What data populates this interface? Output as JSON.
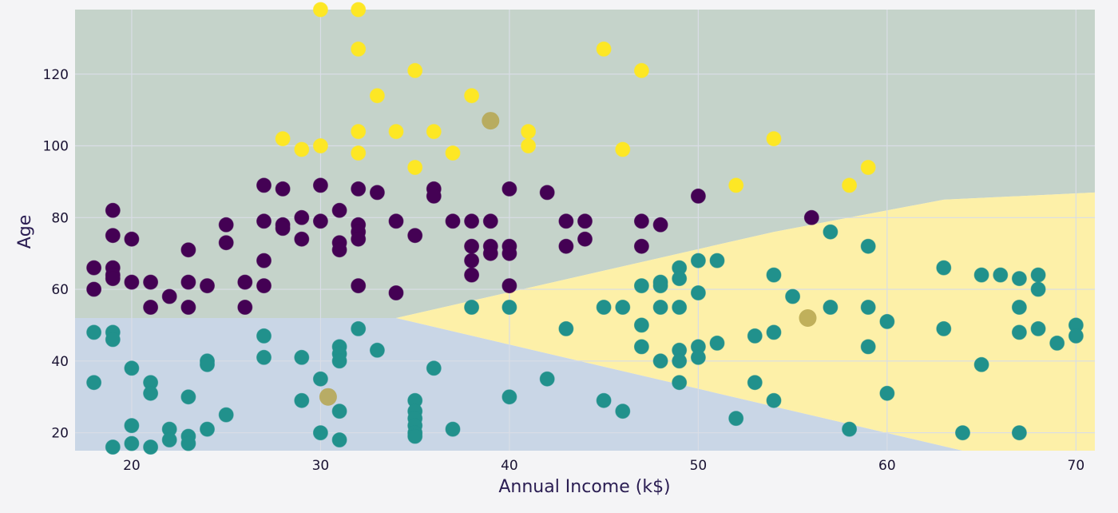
{
  "chart_data": {
    "type": "scatter",
    "title": "",
    "xlabel": "Annual Income (k$)",
    "ylabel": "Age",
    "xlim": [
      17,
      71
    ],
    "ylim": [
      15,
      138
    ],
    "x_ticks": [
      20,
      30,
      40,
      50,
      60,
      70
    ],
    "y_ticks": [
      20,
      40,
      60,
      80,
      100,
      120
    ],
    "grid": true,
    "colors": {
      "region_teal": "#c5d3ca",
      "region_blue": "#c9d6e6",
      "region_yellow": "#fdf0a8",
      "purple": "#440154",
      "teal": "#21918c",
      "yellow": "#fde725",
      "centroid": "#b5a44e"
    },
    "decision_regions": [
      {
        "name": "region-purple-cluster",
        "color_key": "region_teal",
        "points": [
          [
            17,
            138
          ],
          [
            71,
            138
          ],
          [
            71,
            87
          ],
          [
            63,
            85
          ],
          [
            54,
            76
          ],
          [
            34,
            52
          ],
          [
            17,
            52
          ]
        ]
      },
      {
        "name": "region-teal-cluster",
        "color_key": "region_blue",
        "points": [
          [
            17,
            52
          ],
          [
            34,
            52
          ],
          [
            64,
            15
          ],
          [
            17,
            15
          ]
        ]
      },
      {
        "name": "region-yellow-cluster",
        "color_key": "region_yellow",
        "points": [
          [
            34,
            52
          ],
          [
            54,
            76
          ],
          [
            63,
            85
          ],
          [
            71,
            87
          ],
          [
            71,
            15
          ],
          [
            64,
            15
          ]
        ]
      }
    ],
    "series": [
      {
        "color_key": "yellow",
        "points": [
          [
            30,
            138
          ],
          [
            32,
            138
          ],
          [
            32,
            127
          ],
          [
            45,
            127
          ],
          [
            35,
            121
          ],
          [
            47,
            121
          ],
          [
            33,
            114
          ],
          [
            38,
            114
          ],
          [
            32,
            104
          ],
          [
            34,
            104
          ],
          [
            36,
            104
          ],
          [
            41,
            104
          ],
          [
            28,
            102
          ],
          [
            54,
            102
          ],
          [
            29,
            99
          ],
          [
            30,
            100
          ],
          [
            41,
            100
          ],
          [
            46,
            99
          ],
          [
            32,
            98
          ],
          [
            37,
            98
          ],
          [
            35,
            94
          ],
          [
            59,
            94
          ],
          [
            52,
            89
          ],
          [
            58,
            89
          ]
        ]
      },
      {
        "color_key": "purple",
        "points": [
          [
            19,
            82
          ],
          [
            19,
            75
          ],
          [
            20,
            74
          ],
          [
            18,
            66
          ],
          [
            19,
            66
          ],
          [
            19,
            64
          ],
          [
            19,
            63
          ],
          [
            18,
            60
          ],
          [
            20,
            62
          ],
          [
            21,
            62
          ],
          [
            21,
            55
          ],
          [
            22,
            58
          ],
          [
            23,
            71
          ],
          [
            23,
            62
          ],
          [
            23,
            55
          ],
          [
            24,
            61
          ],
          [
            25,
            78
          ],
          [
            25,
            73
          ],
          [
            26,
            62
          ],
          [
            26,
            55
          ],
          [
            27,
            89
          ],
          [
            27,
            79
          ],
          [
            27,
            68
          ],
          [
            27,
            61
          ],
          [
            28,
            88
          ],
          [
            28,
            78
          ],
          [
            28,
            77
          ],
          [
            29,
            80
          ],
          [
            29,
            74
          ],
          [
            30,
            89
          ],
          [
            30,
            79
          ],
          [
            31,
            82
          ],
          [
            31,
            73
          ],
          [
            31,
            71
          ],
          [
            32,
            88
          ],
          [
            32,
            78
          ],
          [
            32,
            76
          ],
          [
            32,
            74
          ],
          [
            32,
            61
          ],
          [
            33,
            87
          ],
          [
            34,
            79
          ],
          [
            34,
            59
          ],
          [
            35,
            75
          ],
          [
            36,
            88
          ],
          [
            36,
            86
          ],
          [
            37,
            79
          ],
          [
            38,
            79
          ],
          [
            38,
            72
          ],
          [
            38,
            68
          ],
          [
            38,
            64
          ],
          [
            39,
            79
          ],
          [
            39,
            72
          ],
          [
            39,
            70
          ],
          [
            40,
            88
          ],
          [
            40,
            72
          ],
          [
            40,
            70
          ],
          [
            40,
            61
          ],
          [
            42,
            87
          ],
          [
            43,
            79
          ],
          [
            43,
            72
          ],
          [
            44,
            79
          ],
          [
            44,
            74
          ],
          [
            47,
            79
          ],
          [
            47,
            72
          ],
          [
            48,
            78
          ],
          [
            50,
            86
          ],
          [
            56,
            80
          ]
        ]
      },
      {
        "color_key": "teal",
        "points": [
          [
            18,
            48
          ],
          [
            18,
            34
          ],
          [
            19,
            48
          ],
          [
            19,
            46
          ],
          [
            19,
            16
          ],
          [
            20,
            38
          ],
          [
            20,
            22
          ],
          [
            20,
            17
          ],
          [
            21,
            34
          ],
          [
            21,
            31
          ],
          [
            21,
            16
          ],
          [
            22,
            21
          ],
          [
            22,
            18
          ],
          [
            23,
            30
          ],
          [
            23,
            19
          ],
          [
            23,
            17
          ],
          [
            24,
            40
          ],
          [
            24,
            39
          ],
          [
            24,
            21
          ],
          [
            25,
            25
          ],
          [
            27,
            47
          ],
          [
            27,
            41
          ],
          [
            29,
            41
          ],
          [
            29,
            29
          ],
          [
            30,
            35
          ],
          [
            30,
            20
          ],
          [
            31,
            44
          ],
          [
            31,
            42
          ],
          [
            31,
            40
          ],
          [
            31,
            26
          ],
          [
            31,
            18
          ],
          [
            32,
            49
          ],
          [
            33,
            43
          ],
          [
            35,
            29
          ],
          [
            35,
            26
          ],
          [
            35,
            24
          ],
          [
            35,
            22
          ],
          [
            35,
            20
          ],
          [
            35,
            19
          ],
          [
            36,
            38
          ],
          [
            37,
            21
          ],
          [
            38,
            55
          ],
          [
            40,
            55
          ],
          [
            40,
            30
          ],
          [
            42,
            35
          ],
          [
            43,
            49
          ],
          [
            45,
            55
          ],
          [
            45,
            29
          ],
          [
            46,
            55
          ],
          [
            46,
            26
          ],
          [
            47,
            61
          ],
          [
            47,
            50
          ],
          [
            47,
            44
          ],
          [
            48,
            62
          ],
          [
            48,
            61
          ],
          [
            48,
            55
          ],
          [
            48,
            40
          ],
          [
            49,
            66
          ],
          [
            49,
            63
          ],
          [
            49,
            55
          ],
          [
            49,
            43
          ],
          [
            49,
            40
          ],
          [
            49,
            34
          ],
          [
            50,
            68
          ],
          [
            50,
            59
          ],
          [
            50,
            44
          ],
          [
            50,
            41
          ],
          [
            51,
            68
          ],
          [
            51,
            45
          ],
          [
            52,
            24
          ],
          [
            53,
            47
          ],
          [
            53,
            34
          ],
          [
            54,
            64
          ],
          [
            54,
            48
          ],
          [
            54,
            29
          ],
          [
            55,
            58
          ],
          [
            57,
            76
          ],
          [
            57,
            55
          ],
          [
            58,
            21
          ],
          [
            59,
            72
          ],
          [
            59,
            55
          ],
          [
            59,
            44
          ],
          [
            60,
            51
          ],
          [
            60,
            31
          ],
          [
            63,
            66
          ],
          [
            63,
            49
          ],
          [
            64,
            20
          ],
          [
            65,
            64
          ],
          [
            65,
            39
          ],
          [
            66,
            64
          ],
          [
            67,
            63
          ],
          [
            67,
            55
          ],
          [
            67,
            48
          ],
          [
            67,
            20
          ],
          [
            68,
            64
          ],
          [
            68,
            60
          ],
          [
            68,
            49
          ],
          [
            69,
            45
          ],
          [
            70,
            50
          ],
          [
            70,
            47
          ]
        ]
      }
    ],
    "centroids": [
      [
        39,
        107
      ],
      [
        55.8,
        52
      ],
      [
        30.4,
        30
      ]
    ]
  }
}
